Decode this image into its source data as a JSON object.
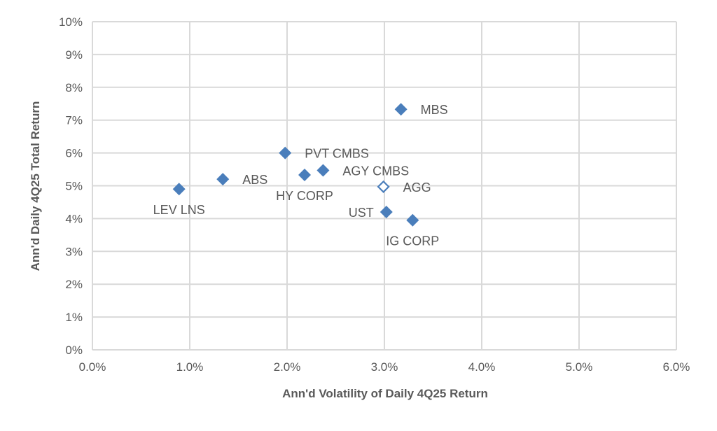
{
  "chart_data": {
    "type": "scatter",
    "title": "",
    "xlabel": "Ann'd Volatility of Daily 4Q25 Return",
    "ylabel": "Ann'd Daily 4Q25 Total Return",
    "xlim": [
      0,
      6
    ],
    "ylim": [
      0,
      10
    ],
    "grid": true,
    "x_ticks": [
      "0.0%",
      "1.0%",
      "2.0%",
      "3.0%",
      "4.0%",
      "5.0%",
      "6.0%"
    ],
    "y_ticks": [
      "0%",
      "1%",
      "2%",
      "3%",
      "4%",
      "5%",
      "6%",
      "7%",
      "8%",
      "9%",
      "10%"
    ],
    "marker_color": "#4a7ebb",
    "points": [
      {
        "label": "LEV LNS",
        "x": 0.89,
        "y": 4.9,
        "label_pos": "below",
        "hollow": false
      },
      {
        "label": "ABS",
        "x": 1.34,
        "y": 5.2,
        "label_pos": "right",
        "hollow": false
      },
      {
        "label": "PVT CMBS",
        "x": 1.98,
        "y": 6.0,
        "label_pos": "right",
        "hollow": false
      },
      {
        "label": "HY CORP",
        "x": 2.18,
        "y": 5.33,
        "label_pos": "below",
        "hollow": false
      },
      {
        "label": "AGY CMBS",
        "x": 2.37,
        "y": 5.47,
        "label_pos": "right",
        "hollow": false
      },
      {
        "label": "MBS",
        "x": 3.17,
        "y": 7.33,
        "label_pos": "right",
        "hollow": false
      },
      {
        "label": "AGG",
        "x": 2.99,
        "y": 4.97,
        "label_pos": "right",
        "hollow": true
      },
      {
        "label": "UST",
        "x": 3.02,
        "y": 4.2,
        "label_pos": "left",
        "hollow": false
      },
      {
        "label": "IG CORP",
        "x": 3.29,
        "y": 3.95,
        "label_pos": "below",
        "hollow": false
      }
    ]
  }
}
